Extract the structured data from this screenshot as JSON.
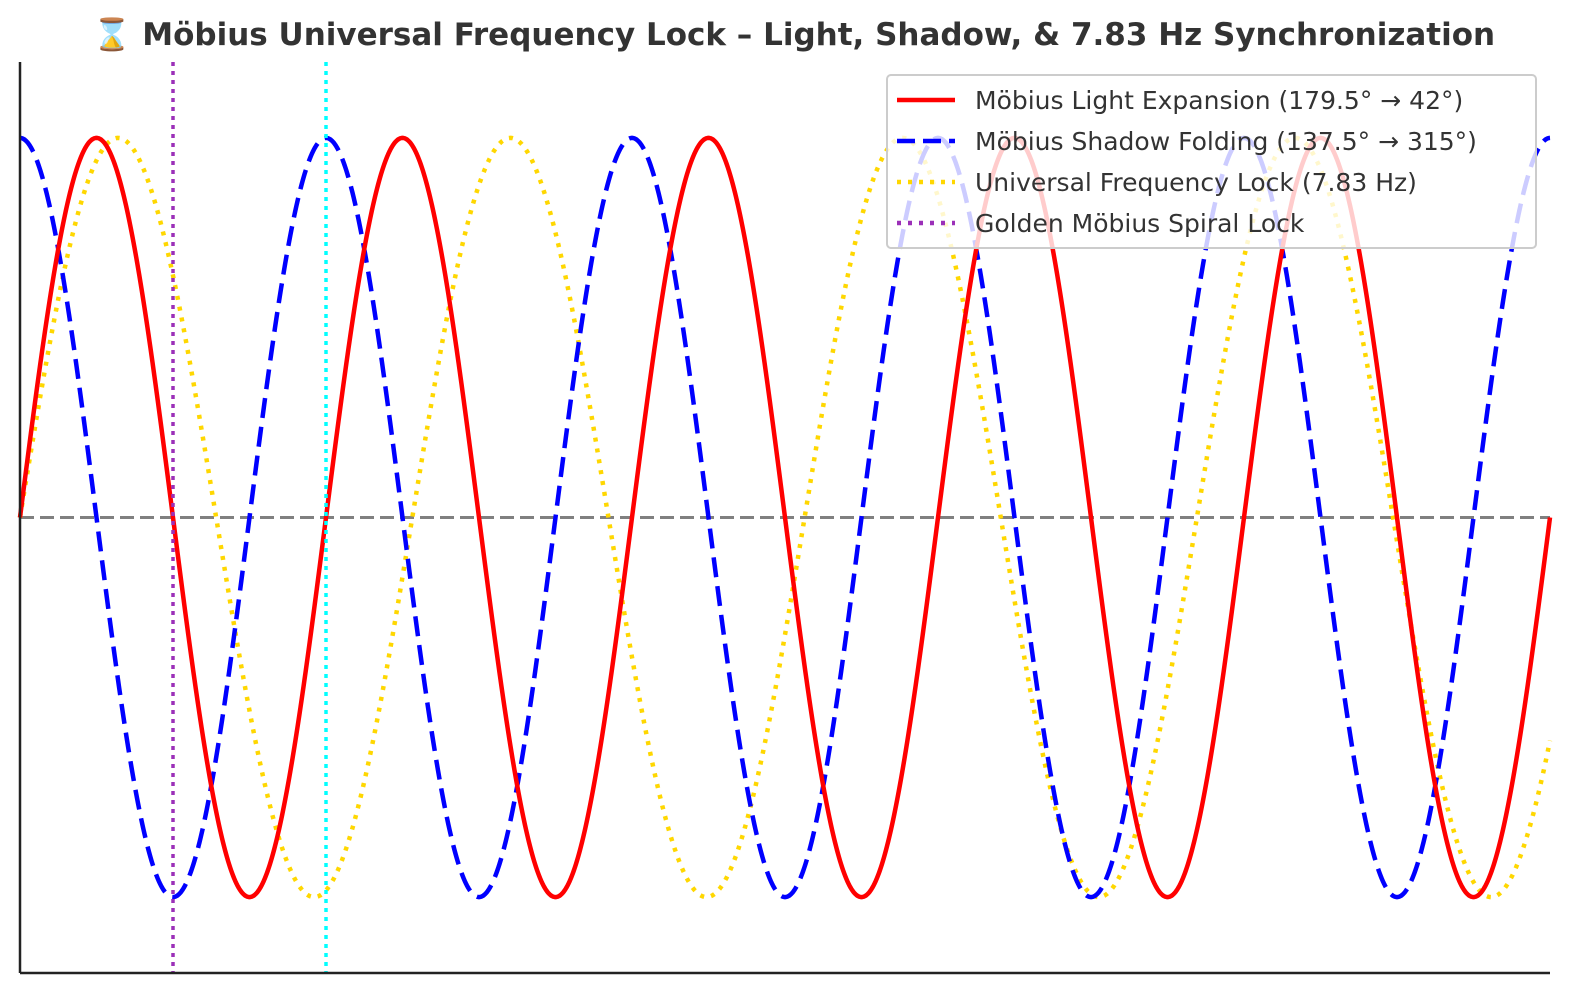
{
  "chart_data": {
    "type": "line",
    "title": "⌛ Möbius Universal Frequency Lock – Light, Shadow, & 7.83 Hz Synchronization",
    "xlabel": "",
    "ylabel": "",
    "xlim": [
      0,
      10
    ],
    "ylim": [
      -1.2,
      1.2
    ],
    "grid": false,
    "legend_position": "top-right",
    "series": [
      {
        "name": "Möbius Light Expansion (179.5° → 42°)",
        "function": "sin",
        "amplitude": 1,
        "frequency": 0.5,
        "phase_deg": 0,
        "color": "#ff0000",
        "style": "solid"
      },
      {
        "name": "Möbius Shadow Folding (137.5° → 315°)",
        "function": "cos",
        "amplitude": 1,
        "frequency": 0.5,
        "phase_deg": 0,
        "color": "#0000ff",
        "style": "dashed"
      },
      {
        "name": "Universal Frequency Lock (7.83 Hz)",
        "function": "sin",
        "amplitude": 1,
        "frequency": 0.39,
        "phase_deg": 0,
        "color": "#ffd700",
        "style": "dotted"
      }
    ],
    "reference_lines": [
      {
        "orientation": "horizontal",
        "value": 0,
        "color": "#808080",
        "style": "dashed"
      },
      {
        "name": "Golden Möbius Spiral Lock",
        "orientation": "vertical",
        "value": 1,
        "color": "#9b30b8",
        "style": "dotted"
      },
      {
        "orientation": "vertical",
        "value": 2,
        "color": "#00ffff",
        "style": "dotted"
      }
    ],
    "legend_entries": [
      {
        "label": "Möbius Light Expansion (179.5° → 42°)",
        "color": "#ff0000",
        "style": "solid"
      },
      {
        "label": "Möbius Shadow Folding (137.5° → 315°)",
        "color": "#0000ff",
        "style": "dashed"
      },
      {
        "label": "Universal Frequency Lock (7.83 Hz)",
        "color": "#ffd700",
        "style": "dotted"
      },
      {
        "label": "Golden Möbius Spiral Lock",
        "color": "#9b30b8",
        "style": "dotted"
      }
    ]
  }
}
